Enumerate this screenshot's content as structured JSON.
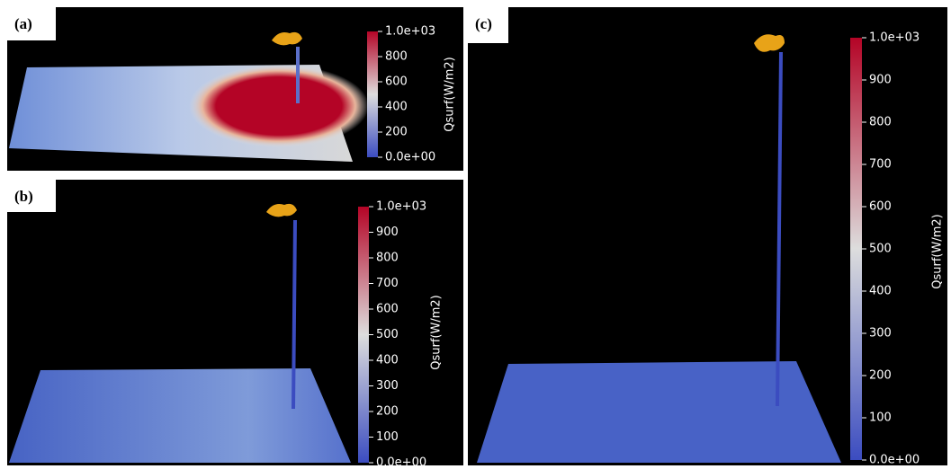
{
  "panels": [
    {
      "label": "(a)",
      "colorbar": {
        "title": "Qsurf(W/m2)",
        "ticks": [
          {
            "value": 0,
            "label": "0.0e+00"
          },
          200,
          400,
          600,
          800,
          {
            "value": 1000,
            "label": "1.0e+03"
          }
        ]
      }
    },
    {
      "label": "(b)",
      "colorbar": {
        "title": "Qsurf(W/m2)",
        "ticks": [
          {
            "value": 0,
            "label": "0.0e+00"
          },
          100,
          200,
          300,
          400,
          500,
          600,
          700,
          800,
          900,
          {
            "value": 1000,
            "label": "1.0e+03"
          }
        ]
      }
    },
    {
      "label": "(c)",
      "colorbar": {
        "title": "Qsurf(W/m2)",
        "ticks": [
          {
            "value": 0,
            "label": "0.0e+00"
          },
          100,
          200,
          300,
          400,
          500,
          600,
          700,
          800,
          900,
          {
            "value": 1000,
            "label": "1.0e+03"
          }
        ]
      }
    }
  ]
}
